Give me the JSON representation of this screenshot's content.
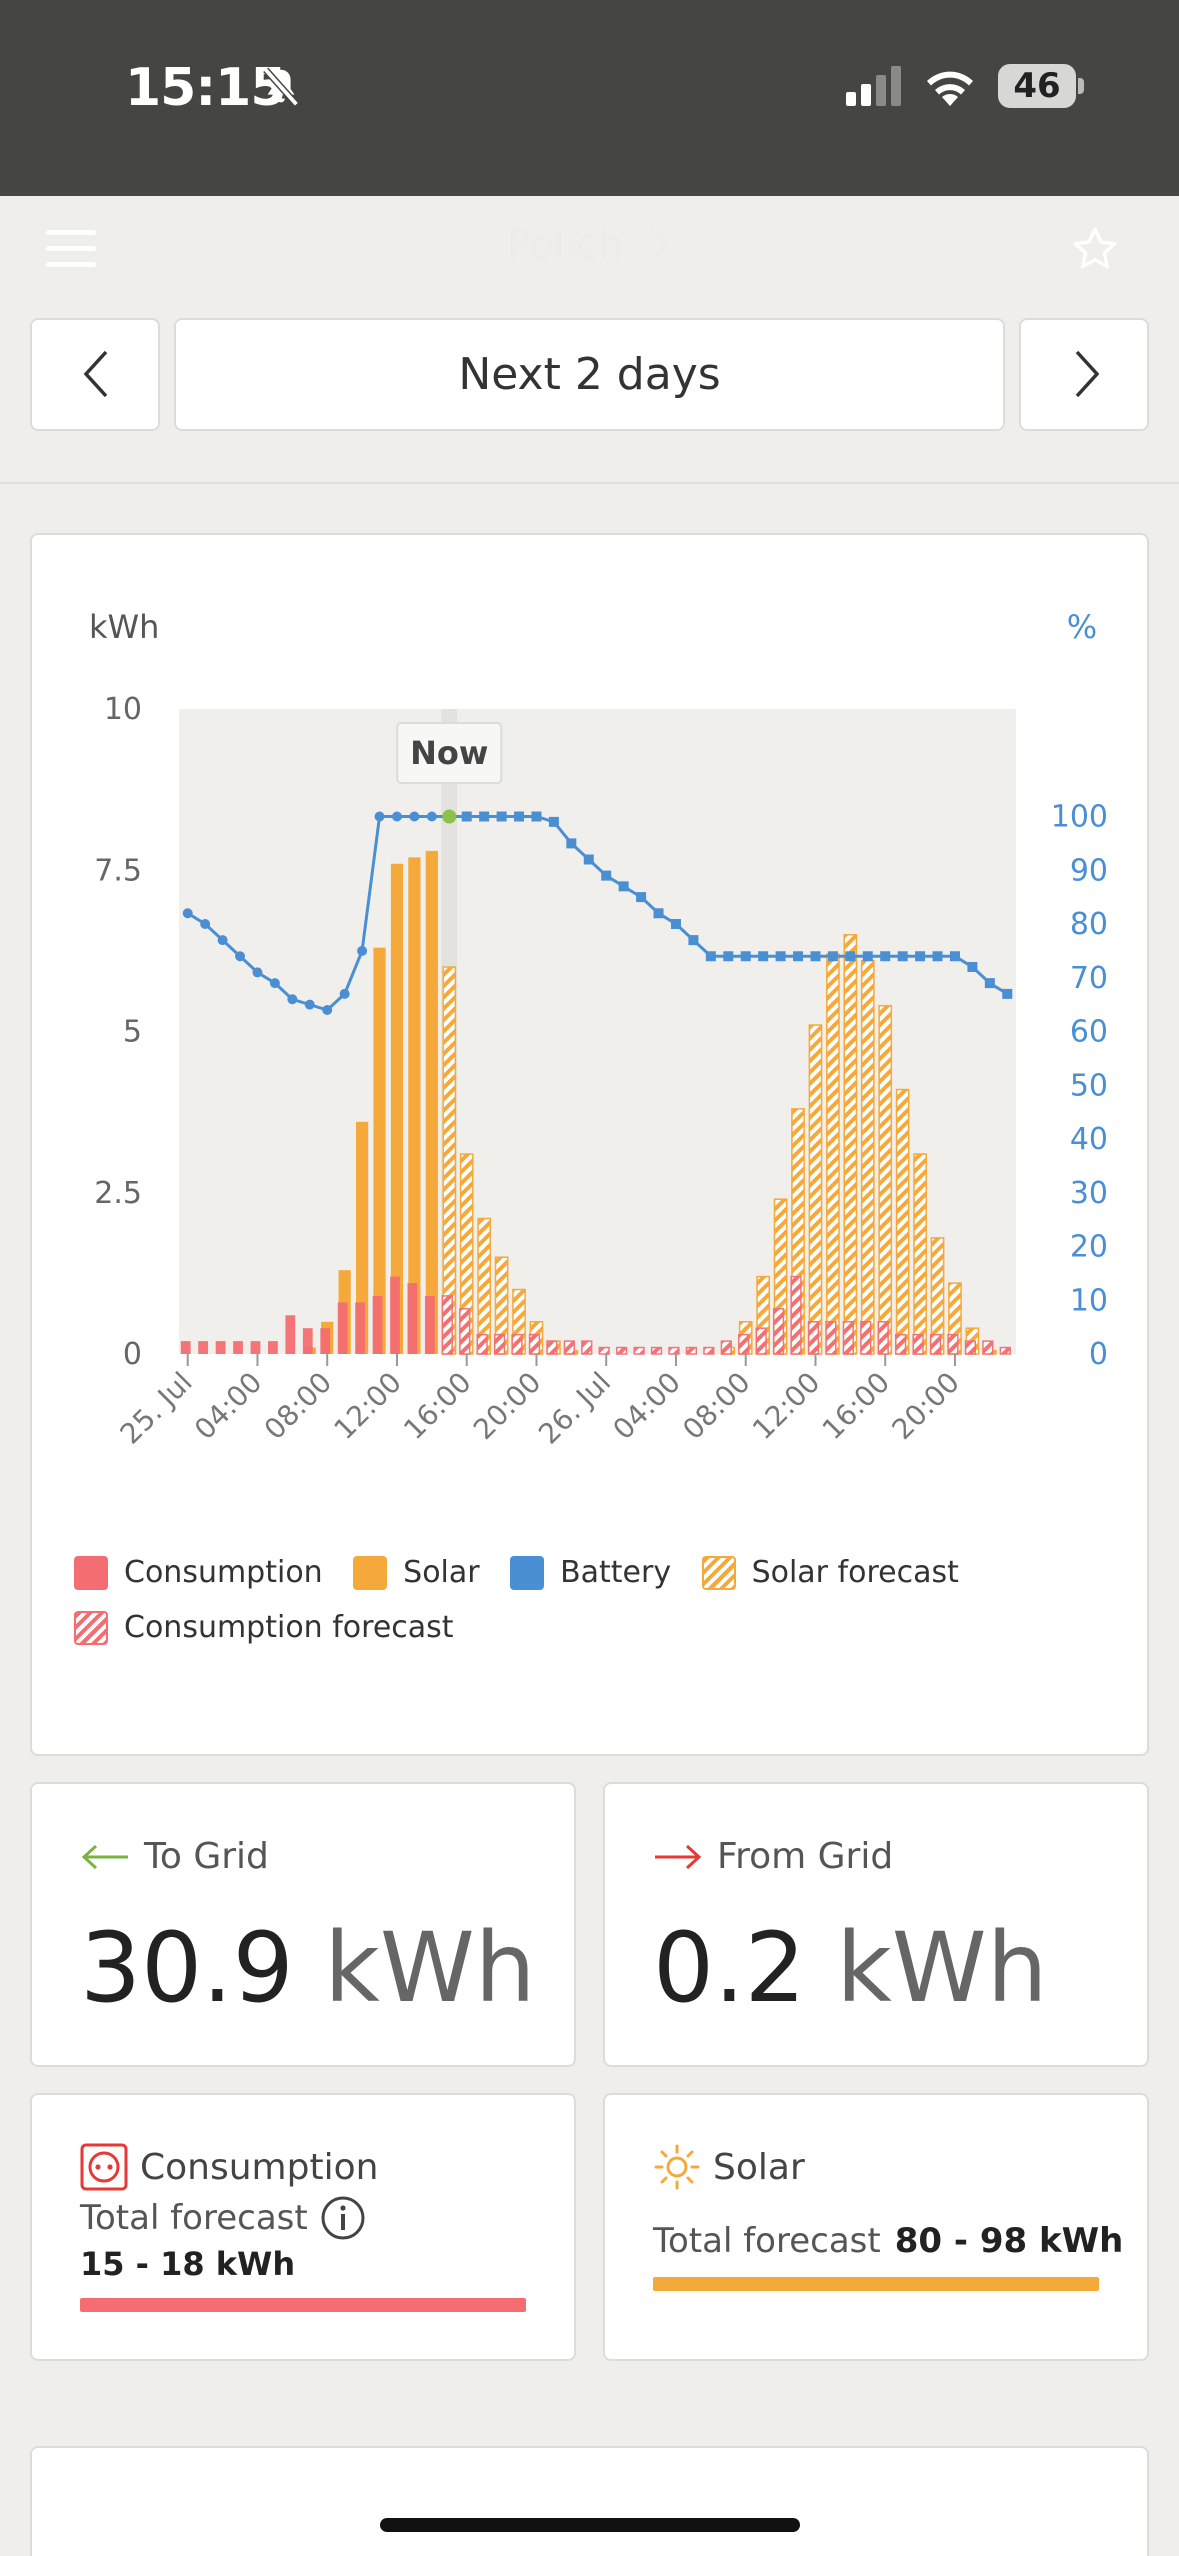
{
  "status_bar": {
    "time": "15:15",
    "battery": "46",
    "icons": [
      "bell-slash-icon",
      "signal-icon",
      "wifi-icon"
    ]
  },
  "header": {
    "title": "Pölich",
    "menu_icon": "hamburger-icon",
    "favorite_icon": "star-icon",
    "title_chevron": "chevron-right-icon"
  },
  "date_nav": {
    "label": "Next 2 days",
    "prev_icon": "chevron-left-icon",
    "next_icon": "chevron-right-icon"
  },
  "chart_data": {
    "type": "bar",
    "y_left_label": "kWh",
    "y_right_label": "%",
    "y_left_ticks": [
      "10",
      "7.5",
      "5",
      "2.5",
      "0"
    ],
    "y_right_ticks": [
      "100",
      "90",
      "80",
      "70",
      "60",
      "50",
      "40",
      "30",
      "20",
      "10",
      "0"
    ],
    "ylim_left": [
      0,
      10
    ],
    "ylim_right": [
      0,
      120
    ],
    "x_tick_labels": [
      "25. Jul",
      "04:00",
      "08:00",
      "12:00",
      "16:00",
      "20:00",
      "26. Jul",
      "04:00",
      "08:00",
      "12:00",
      "16:00",
      "20:00"
    ],
    "now_label": "Now",
    "now_hour": 15.5,
    "hours_total": 48,
    "solar": [
      0,
      0,
      0,
      0,
      0,
      0,
      0,
      0.1,
      0.5,
      1.3,
      3.6,
      6.3,
      7.6,
      7.7,
      7.8,
      6.0,
      3.1,
      2.1,
      1.5,
      1.0,
      0.5,
      0.2,
      0.05,
      0,
      0,
      0,
      0,
      0,
      0,
      0,
      0,
      0.1,
      0.5,
      1.2,
      2.4,
      3.8,
      5.1,
      6.2,
      6.5,
      6.1,
      5.4,
      4.1,
      3.1,
      1.8,
      1.1,
      0.4,
      0.05,
      0
    ],
    "solar_forecast_from_hour": 15,
    "consumption": [
      0.2,
      0.2,
      0.2,
      0.2,
      0.2,
      0.2,
      0.6,
      0.4,
      0.4,
      0.8,
      0.8,
      0.9,
      1.2,
      1.1,
      0.9,
      0.9,
      0.7,
      0.3,
      0.3,
      0.3,
      0.3,
      0.2,
      0.2,
      0.2,
      0.1,
      0.1,
      0.1,
      0.1,
      0.1,
      0.1,
      0.1,
      0.2,
      0.3,
      0.4,
      0.7,
      1.2,
      0.5,
      0.5,
      0.5,
      0.5,
      0.5,
      0.3,
      0.3,
      0.3,
      0.3,
      0.2,
      0.2,
      0.1
    ],
    "consumption_forecast_from_hour": 15,
    "battery_percent": [
      82,
      80,
      77,
      74,
      71,
      69,
      66,
      65,
      64,
      67,
      75,
      100,
      100,
      100,
      100,
      100,
      100,
      100,
      100,
      100,
      100,
      99,
      95,
      92,
      89,
      87,
      85,
      82,
      80,
      77,
      74,
      74,
      74,
      74,
      74,
      74,
      74,
      74,
      74,
      74,
      74,
      74,
      74,
      74,
      74,
      72,
      69,
      67
    ],
    "legend": [
      {
        "name": "Consumption",
        "swatch": "consumption"
      },
      {
        "name": "Solar",
        "swatch": "solar"
      },
      {
        "name": "Battery",
        "swatch": "battery"
      },
      {
        "name": "Solar forecast",
        "swatch": "solar-forecast"
      },
      {
        "name": "Consumption forecast",
        "swatch": "consumption-forecast"
      }
    ],
    "colors": {
      "solar": "#f5a93b",
      "consumption": "#f36d72",
      "battery": "#4a8fd4",
      "now_dot": "#8bc34a"
    }
  },
  "to_grid": {
    "label": "To Grid",
    "value": "30.9",
    "unit": "kWh",
    "arrow_icon": "arrow-left-icon",
    "arrow_color": "#7cb342"
  },
  "from_grid": {
    "label": "From Grid",
    "value": "0.2",
    "unit": "kWh",
    "arrow_icon": "arrow-right-icon",
    "arrow_color": "#e53935"
  },
  "consumption_summary": {
    "title": "Consumption",
    "subtitle": "Total forecast",
    "value": "15 - 18 kWh",
    "icon": "socket-icon",
    "info_icon": "info-icon"
  },
  "solar_summary": {
    "title": "Solar",
    "subtitle": "Total forecast",
    "value": "80 - 98 kWh",
    "icon": "sun-icon"
  }
}
